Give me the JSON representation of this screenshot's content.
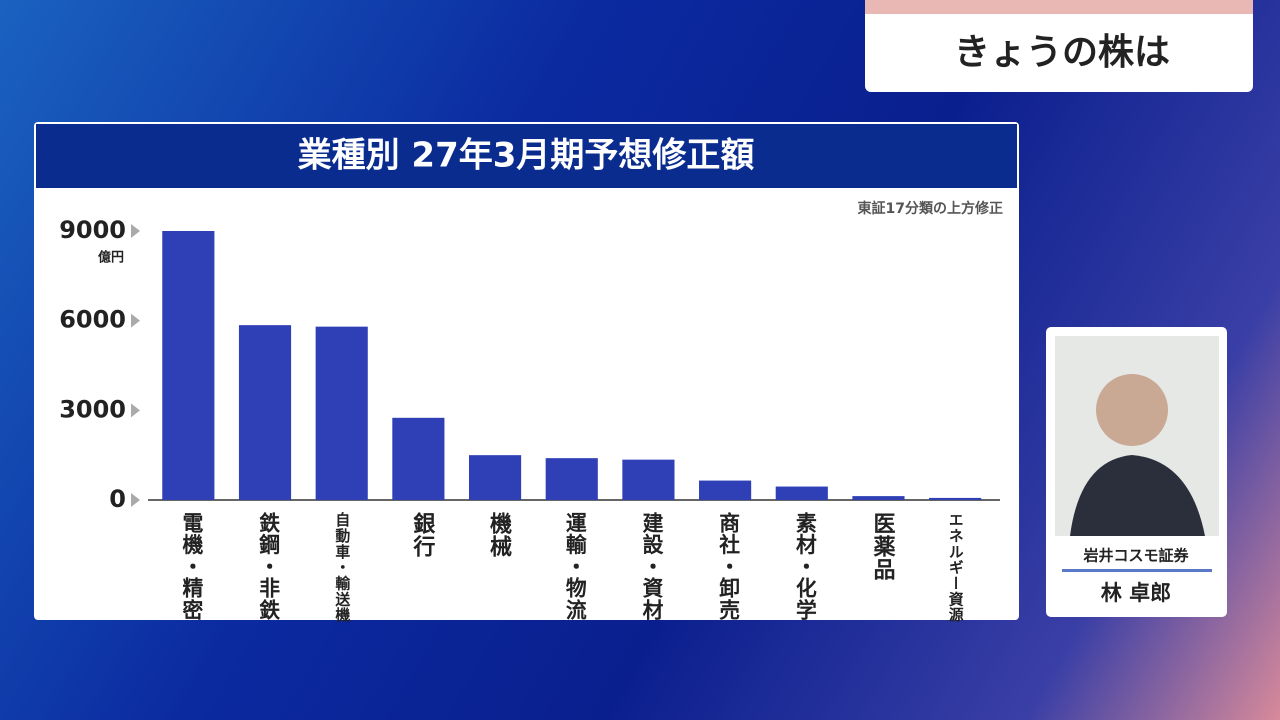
{
  "segment_title": "きょうの株は",
  "presenter": {
    "company": "岩井コスモ証券",
    "name": "林 卓郎"
  },
  "chart_data": {
    "type": "bar",
    "title": "業種別 27年3月期予想修正額",
    "annotation": "東証17分類の上方修正",
    "y_label": "億円",
    "categories": [
      "電機・精密",
      "鉄鋼・非鉄",
      "自動車・輸送機",
      "銀行",
      "機械",
      "運輸・物流",
      "建設・資材",
      "商社・卸売",
      "素材・化学",
      "医薬品",
      "エネルギー資源"
    ],
    "values": [
      9000,
      5850,
      5800,
      2750,
      1500,
      1400,
      1350,
      650,
      450,
      130,
      70
    ],
    "color": "#2f3fb5",
    "ylim": [
      0,
      9000
    ],
    "yticks": [
      0,
      3000,
      6000,
      9000
    ]
  }
}
